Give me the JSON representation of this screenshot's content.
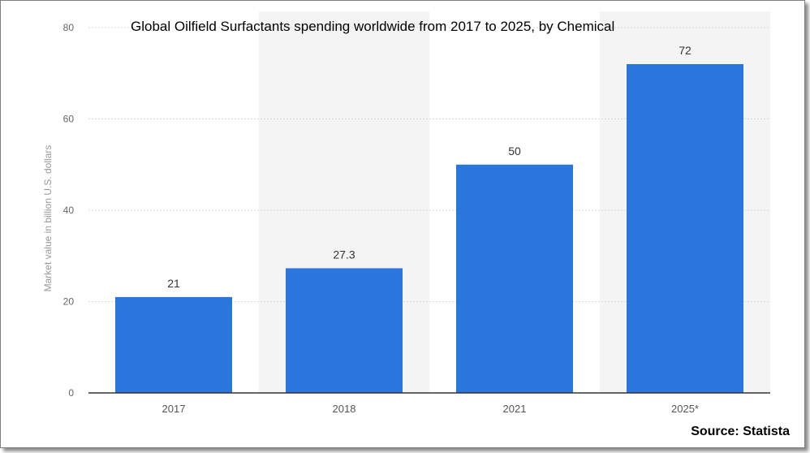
{
  "source_label": "Source: Statista",
  "colors": {
    "bar": "#2a76dd",
    "band": "#f4f4f4",
    "grid": "#d9d9d9",
    "axis": "#333333"
  },
  "chart_data": {
    "type": "bar",
    "title": "Global Oilfield Surfactants spending worldwide from 2017 to 2025, by Chemical",
    "xlabel": "",
    "ylabel": "Market value in billion U.S. dollars",
    "categories": [
      "2017",
      "2018",
      "2021",
      "2025*"
    ],
    "values": [
      21,
      27.3,
      50,
      72
    ],
    "value_labels": [
      "21",
      "27.3",
      "50",
      "72"
    ],
    "ylim": [
      0,
      80
    ],
    "yticks": [
      0,
      20,
      40,
      60,
      80
    ],
    "grid": true,
    "legend": "none"
  }
}
